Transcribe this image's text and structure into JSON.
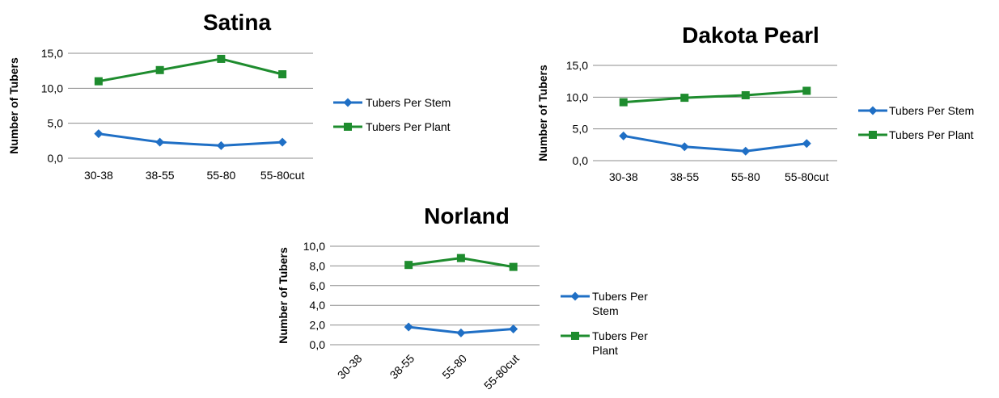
{
  "chart_data": [
    {
      "type": "line",
      "title": "Satina",
      "ylabel": "Number of Tubers",
      "categories": [
        "30-38",
        "38-55",
        "55-80",
        "55-80cut"
      ],
      "ylim": [
        0,
        15
      ],
      "yticks": [
        "0,0",
        "5,0",
        "10,0",
        "15,0"
      ],
      "grid": true,
      "legend": "right",
      "series": [
        {
          "name": "Tubers Per Stem",
          "values": [
            3.5,
            2.3,
            1.8,
            2.3
          ],
          "color": "#1f6fc5",
          "marker": "diamond"
        },
        {
          "name": "Tubers Per Plant",
          "values": [
            11.0,
            12.6,
            14.2,
            12.0
          ],
          "color": "#1e8c2e",
          "marker": "square"
        }
      ]
    },
    {
      "type": "line",
      "title": "Dakota Pearl",
      "ylabel": "Number of Tubers",
      "categories": [
        "30-38",
        "38-55",
        "55-80",
        "55-80cut"
      ],
      "ylim": [
        0,
        15
      ],
      "yticks": [
        "0,0",
        "5,0",
        "10,0",
        "15,0"
      ],
      "grid": true,
      "legend": "right",
      "series": [
        {
          "name": "Tubers Per Stem",
          "values": [
            3.9,
            2.2,
            1.5,
            2.7
          ],
          "color": "#1f6fc5",
          "marker": "diamond"
        },
        {
          "name": "Tubers Per Plant",
          "values": [
            9.2,
            9.9,
            10.3,
            11.0
          ],
          "color": "#1e8c2e",
          "marker": "square"
        }
      ]
    },
    {
      "type": "line",
      "title": "Norland",
      "ylabel": "Number of Tubers",
      "categories": [
        "30-38",
        "38-55",
        "55-80",
        "55-80cut"
      ],
      "ylim": [
        0,
        10
      ],
      "yticks": [
        "0,0",
        "2,0",
        "4,0",
        "6,0",
        "8,0",
        "10,0"
      ],
      "grid": true,
      "legend": "right",
      "series": [
        {
          "name": "Tubers Per Stem",
          "values": [
            null,
            1.8,
            1.2,
            1.6
          ],
          "color": "#1f6fc5",
          "marker": "diamond"
        },
        {
          "name": "Tubers Per Plant",
          "values": [
            null,
            8.1,
            8.8,
            7.9
          ],
          "color": "#1e8c2e",
          "marker": "square"
        }
      ]
    }
  ]
}
